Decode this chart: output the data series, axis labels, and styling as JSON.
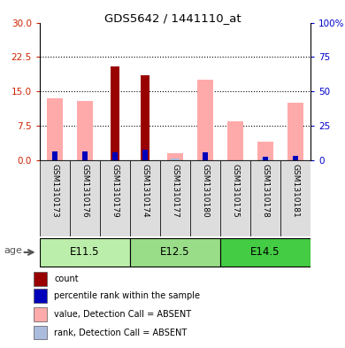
{
  "title": "GDS5642 / 1441110_at",
  "samples": [
    "GSM1310173",
    "GSM1310176",
    "GSM1310179",
    "GSM1310174",
    "GSM1310177",
    "GSM1310180",
    "GSM1310175",
    "GSM1310178",
    "GSM1310181"
  ],
  "groups": [
    {
      "label": "E11.5",
      "color": "#BBEEAA"
    },
    {
      "label": "E12.5",
      "color": "#99DD88"
    },
    {
      "label": "E14.5",
      "color": "#44CC44"
    }
  ],
  "count_values": [
    0,
    0,
    20.5,
    18.5,
    0,
    0,
    0,
    0,
    0
  ],
  "rank_values": [
    6.5,
    6.5,
    5.5,
    7.5,
    0,
    5.5,
    0,
    2.5,
    3.0
  ],
  "pink_value_values": [
    13.5,
    13.0,
    0,
    0,
    1.5,
    17.5,
    8.5,
    4.0,
    12.5
  ],
  "pink_rank_values": [
    0,
    0,
    0,
    0,
    1.0,
    0,
    0,
    2.0,
    0
  ],
  "ylim_left": [
    0,
    30
  ],
  "ylim_right": [
    0,
    100
  ],
  "yticks_left": [
    0,
    7.5,
    15,
    22.5,
    30
  ],
  "yticks_right": [
    0,
    25,
    50,
    75,
    100
  ],
  "count_color": "#990000",
  "rank_color": "#0000BB",
  "pink_value_color": "#FFAAAA",
  "pink_rank_color": "#AABBDD",
  "legend_items": [
    {
      "label": "count",
      "color": "#990000"
    },
    {
      "label": "percentile rank within the sample",
      "color": "#0000BB"
    },
    {
      "label": "value, Detection Call = ABSENT",
      "color": "#FFAAAA"
    },
    {
      "label": "rank, Detection Call = ABSENT",
      "color": "#AABBDD"
    }
  ],
  "age_label": "age",
  "left_label_color": "#CC2200",
  "right_label_color": "#0000CC",
  "sample_box_color": "#DDDDDD",
  "group_boundary_colors": [
    "#BBEEAA",
    "#99DD88",
    "#44CC44"
  ]
}
